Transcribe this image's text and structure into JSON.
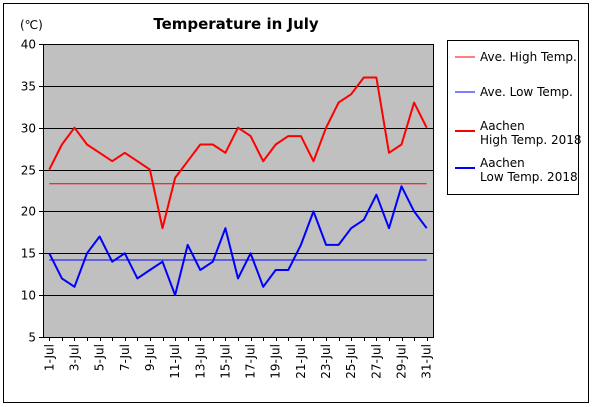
{
  "chart_data": {
    "type": "line",
    "title": "Temperature in July",
    "unit_label": "(℃)",
    "ylim": [
      5,
      40
    ],
    "y_ticks": [
      "5",
      "10",
      "15",
      "20",
      "25",
      "30",
      "35",
      "40"
    ],
    "x_tick_labels": [
      "1-Jul",
      "3-Jul",
      "5-Jul",
      "7-Jul",
      "9-Jul",
      "11-Jul",
      "13-Jul",
      "15-Jul",
      "17-Jul",
      "19-Jul",
      "21-Jul",
      "23-Jul",
      "25-Jul",
      "27-Jul",
      "29-Jul",
      "31-Jul"
    ],
    "x": [
      1,
      2,
      3,
      4,
      5,
      6,
      7,
      8,
      9,
      10,
      11,
      12,
      13,
      14,
      15,
      16,
      17,
      18,
      19,
      20,
      21,
      22,
      23,
      24,
      25,
      26,
      27,
      28,
      29,
      30,
      31
    ],
    "grid": true,
    "legend_position": "right",
    "series": [
      {
        "name": "Ave. High Temp.",
        "color": "#ff0000",
        "style": "thin",
        "values": [
          23.3,
          23.3,
          23.3,
          23.3,
          23.3,
          23.3,
          23.3,
          23.3,
          23.3,
          23.3,
          23.3,
          23.3,
          23.3,
          23.3,
          23.3,
          23.3,
          23.3,
          23.3,
          23.3,
          23.3,
          23.3,
          23.3,
          23.3,
          23.3,
          23.3,
          23.3,
          23.3,
          23.3,
          23.3,
          23.3,
          23.3
        ]
      },
      {
        "name": "Ave. Low Temp.",
        "color": "#0000ff",
        "style": "thin",
        "values": [
          14.2,
          14.2,
          14.2,
          14.2,
          14.2,
          14.2,
          14.2,
          14.2,
          14.2,
          14.2,
          14.2,
          14.2,
          14.2,
          14.2,
          14.2,
          14.2,
          14.2,
          14.2,
          14.2,
          14.2,
          14.2,
          14.2,
          14.2,
          14.2,
          14.2,
          14.2,
          14.2,
          14.2,
          14.2,
          14.2,
          14.2
        ]
      },
      {
        "name_line1": "Aachen",
        "name_line2": "High Temp. 2018",
        "color": "#ff0000",
        "style": "thick",
        "values": [
          25,
          28,
          30,
          28,
          27,
          26,
          27,
          26,
          25,
          18,
          24,
          26,
          28,
          28,
          27,
          30,
          29,
          26,
          28,
          29,
          29,
          26,
          30,
          33,
          34,
          36,
          36,
          27,
          28,
          33,
          30
        ]
      },
      {
        "name_line1": "Aachen",
        "name_line2": "Low Temp. 2018",
        "color": "#0000ff",
        "style": "thick",
        "values": [
          15,
          12,
          11,
          15,
          17,
          14,
          15,
          12,
          13,
          14,
          10,
          16,
          13,
          14,
          18,
          12,
          15,
          11,
          13,
          13,
          16,
          20,
          16,
          16,
          18,
          19,
          22,
          18,
          23,
          20,
          18
        ]
      }
    ]
  }
}
